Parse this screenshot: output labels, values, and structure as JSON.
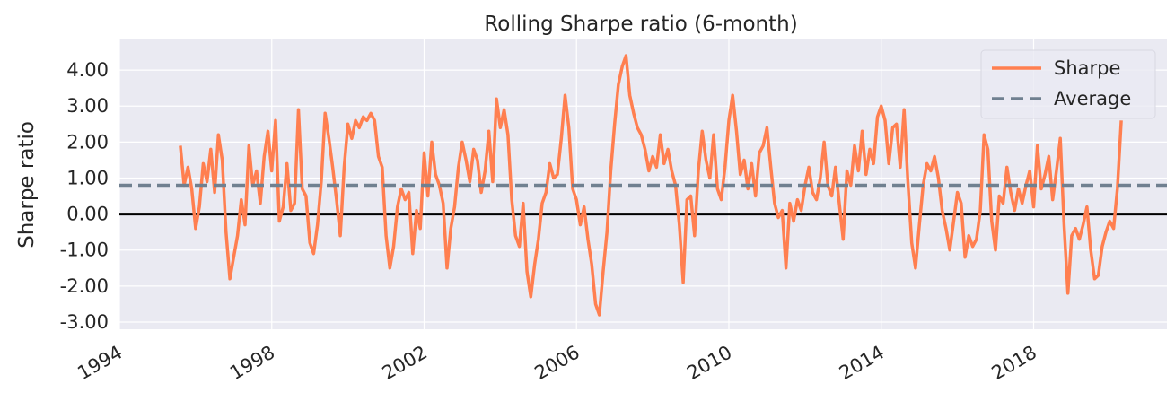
{
  "chart_data": {
    "type": "line",
    "title": "Rolling Sharpe ratio (6-month)",
    "xlabel": "",
    "ylabel": "Sharpe ratio",
    "xlim": [
      1994.0,
      2021.5
    ],
    "ylim": [
      -3.2,
      4.85
    ],
    "x_ticks": [
      1994,
      1998,
      2002,
      2006,
      2010,
      2014,
      2018
    ],
    "x_tick_labels": [
      "1994",
      "1998",
      "2002",
      "2006",
      "2010",
      "2014",
      "2018"
    ],
    "y_ticks": [
      -3,
      -2,
      -1,
      0,
      1,
      2,
      3,
      4
    ],
    "y_tick_labels": [
      "-3.00",
      "-2.00",
      "-1.00",
      "0.00",
      "1.00",
      "2.00",
      "3.00",
      "4.00"
    ],
    "grid": true,
    "legend_position": "top-right",
    "zero_line": 0,
    "average": 0.8,
    "colors": {
      "sharpe": "#ff7f50",
      "average": "#708090",
      "zero": "#000000",
      "background": "#eaeaf2",
      "grid": "#ffffff"
    },
    "series": [
      {
        "name": "Sharpe",
        "x": [
          1995.6,
          1995.7,
          1995.8,
          1995.9,
          1996.0,
          1996.1,
          1996.2,
          1996.3,
          1996.4,
          1996.5,
          1996.6,
          1996.7,
          1996.8,
          1996.9,
          1997.0,
          1997.1,
          1997.2,
          1997.3,
          1997.4,
          1997.5,
          1997.6,
          1997.7,
          1997.8,
          1997.9,
          1998.0,
          1998.1,
          1998.2,
          1998.3,
          1998.4,
          1998.5,
          1998.6,
          1998.7,
          1998.8,
          1998.9,
          1999.0,
          1999.1,
          1999.2,
          1999.3,
          1999.4,
          1999.5,
          1999.6,
          1999.7,
          1999.8,
          1999.9,
          2000.0,
          2000.1,
          2000.2,
          2000.3,
          2000.4,
          2000.5,
          2000.6,
          2000.7,
          2000.8,
          2000.9,
          2001.0,
          2001.1,
          2001.2,
          2001.3,
          2001.4,
          2001.5,
          2001.6,
          2001.7,
          2001.8,
          2001.9,
          2002.0,
          2002.1,
          2002.2,
          2002.3,
          2002.4,
          2002.5,
          2002.6,
          2002.7,
          2002.8,
          2002.9,
          2003.0,
          2003.1,
          2003.2,
          2003.3,
          2003.4,
          2003.5,
          2003.6,
          2003.7,
          2003.8,
          2003.9,
          2004.0,
          2004.1,
          2004.2,
          2004.3,
          2004.4,
          2004.5,
          2004.6,
          2004.7,
          2004.8,
          2004.9,
          2005.0,
          2005.1,
          2005.2,
          2005.3,
          2005.4,
          2005.5,
          2005.6,
          2005.7,
          2005.8,
          2005.9,
          2006.0,
          2006.1,
          2006.2,
          2006.3,
          2006.4,
          2006.5,
          2006.6,
          2006.7,
          2006.8,
          2006.9,
          2007.0,
          2007.1,
          2007.2,
          2007.3,
          2007.4,
          2007.5,
          2007.6,
          2007.7,
          2007.8,
          2007.9,
          2008.0,
          2008.1,
          2008.2,
          2008.3,
          2008.4,
          2008.5,
          2008.6,
          2008.7,
          2008.8,
          2008.9,
          2009.0,
          2009.1,
          2009.2,
          2009.3,
          2009.4,
          2009.5,
          2009.6,
          2009.7,
          2009.8,
          2009.9,
          2010.0,
          2010.1,
          2010.2,
          2010.3,
          2010.4,
          2010.5,
          2010.6,
          2010.7,
          2010.8,
          2010.9,
          2011.0,
          2011.1,
          2011.2,
          2011.3,
          2011.4,
          2011.5,
          2011.6,
          2011.7,
          2011.8,
          2011.9,
          2012.0,
          2012.1,
          2012.2,
          2012.3,
          2012.4,
          2012.5,
          2012.6,
          2012.7,
          2012.8,
          2012.9,
          2013.0,
          2013.1,
          2013.2,
          2013.3,
          2013.4,
          2013.5,
          2013.6,
          2013.7,
          2013.8,
          2013.9,
          2014.0,
          2014.1,
          2014.2,
          2014.3,
          2014.4,
          2014.5,
          2014.6,
          2014.7,
          2014.8,
          2014.9,
          2015.0,
          2015.1,
          2015.2,
          2015.3,
          2015.4,
          2015.5,
          2015.6,
          2015.7,
          2015.8,
          2015.9,
          2016.0,
          2016.1,
          2016.2,
          2016.3,
          2016.4,
          2016.5,
          2016.6,
          2016.7,
          2016.8,
          2016.9,
          2017.0,
          2017.1,
          2017.2,
          2017.3,
          2017.4,
          2017.5,
          2017.6,
          2017.7,
          2017.8,
          2017.9,
          2018.0,
          2018.1,
          2018.2,
          2018.3,
          2018.4,
          2018.5,
          2018.6,
          2018.7,
          2018.8,
          2018.9,
          2019.0,
          2019.1,
          2019.2,
          2019.3,
          2019.4,
          2019.5,
          2019.6,
          2019.7,
          2019.8,
          2019.9,
          2020.0,
          2020.1,
          2020.2,
          2020.3
        ],
        "values": [
          1.9,
          0.8,
          1.3,
          0.7,
          -0.4,
          0.2,
          1.4,
          0.9,
          1.8,
          0.6,
          2.2,
          1.5,
          -0.5,
          -1.8,
          -1.2,
          -0.6,
          0.4,
          -0.3,
          1.9,
          0.8,
          1.2,
          0.3,
          1.6,
          2.3,
          1.2,
          2.6,
          -0.2,
          0.2,
          1.4,
          0.1,
          0.3,
          2.9,
          0.7,
          0.5,
          -0.8,
          -1.1,
          -0.3,
          0.9,
          2.8,
          2.1,
          1.3,
          0.4,
          -0.6,
          1.3,
          2.5,
          2.1,
          2.6,
          2.4,
          2.7,
          2.6,
          2.8,
          2.6,
          1.6,
          1.3,
          -0.6,
          -1.5,
          -0.9,
          0.2,
          0.7,
          0.4,
          0.6,
          -1.1,
          0.1,
          -0.4,
          1.7,
          0.5,
          2.0,
          1.1,
          0.8,
          0.3,
          -1.5,
          -0.4,
          0.2,
          1.3,
          2.0,
          1.5,
          0.9,
          1.8,
          1.5,
          0.6,
          1.2,
          2.3,
          0.9,
          3.2,
          2.4,
          2.9,
          2.2,
          0.4,
          -0.6,
          -0.9,
          0.3,
          -1.6,
          -2.3,
          -1.4,
          -0.7,
          0.3,
          0.6,
          1.4,
          1.0,
          1.1,
          2.1,
          3.3,
          2.4,
          0.7,
          0.4,
          -0.3,
          0.2,
          -0.7,
          -1.4,
          -2.5,
          -2.8,
          -1.6,
          -0.5,
          1.2,
          2.5,
          3.6,
          4.1,
          4.4,
          3.3,
          2.8,
          2.4,
          2.2,
          1.8,
          1.2,
          1.6,
          1.3,
          2.2,
          1.4,
          1.8,
          1.2,
          0.8,
          -0.3,
          -1.9,
          0.4,
          0.5,
          -0.6,
          1.2,
          2.3,
          1.5,
          1.0,
          2.2,
          0.7,
          0.4,
          1.3,
          2.6,
          3.3,
          2.3,
          1.1,
          1.5,
          0.7,
          1.4,
          0.5,
          1.7,
          1.9,
          2.4,
          1.3,
          0.3,
          -0.1,
          0.1,
          -1.5,
          0.3,
          -0.2,
          0.4,
          0.1,
          0.8,
          1.3,
          0.6,
          0.4,
          1.0,
          2.0,
          0.8,
          0.5,
          1.3,
          0.3,
          -0.7,
          1.2,
          0.8,
          1.9,
          1.2,
          2.3,
          1.1,
          1.8,
          1.4,
          2.7,
          3.0,
          2.6,
          1.4,
          2.4,
          2.5,
          1.3,
          2.9,
          0.9,
          -0.8,
          -1.5,
          -0.3,
          0.8,
          1.4,
          1.2,
          1.6,
          1.0,
          0.1,
          -0.4,
          -1.0,
          -0.2,
          0.6,
          0.3,
          -1.2,
          -0.6,
          -0.9,
          -0.7,
          0.1,
          2.2,
          1.8,
          -0.2,
          -1.0,
          0.5,
          0.3,
          1.3,
          0.6,
          0.1,
          0.7,
          0.3,
          0.8,
          1.2,
          0.2,
          1.9,
          0.7,
          1.1,
          1.6,
          0.4,
          1.2,
          2.1,
          -0.3,
          -2.2,
          -0.6,
          -0.4,
          -0.7,
          -0.3,
          0.2,
          -1.0,
          -1.8,
          -1.7,
          -0.9,
          -0.5,
          -0.2,
          -0.4,
          0.7,
          2.6
        ]
      },
      {
        "name": "Average",
        "value": 0.8
      }
    ]
  }
}
